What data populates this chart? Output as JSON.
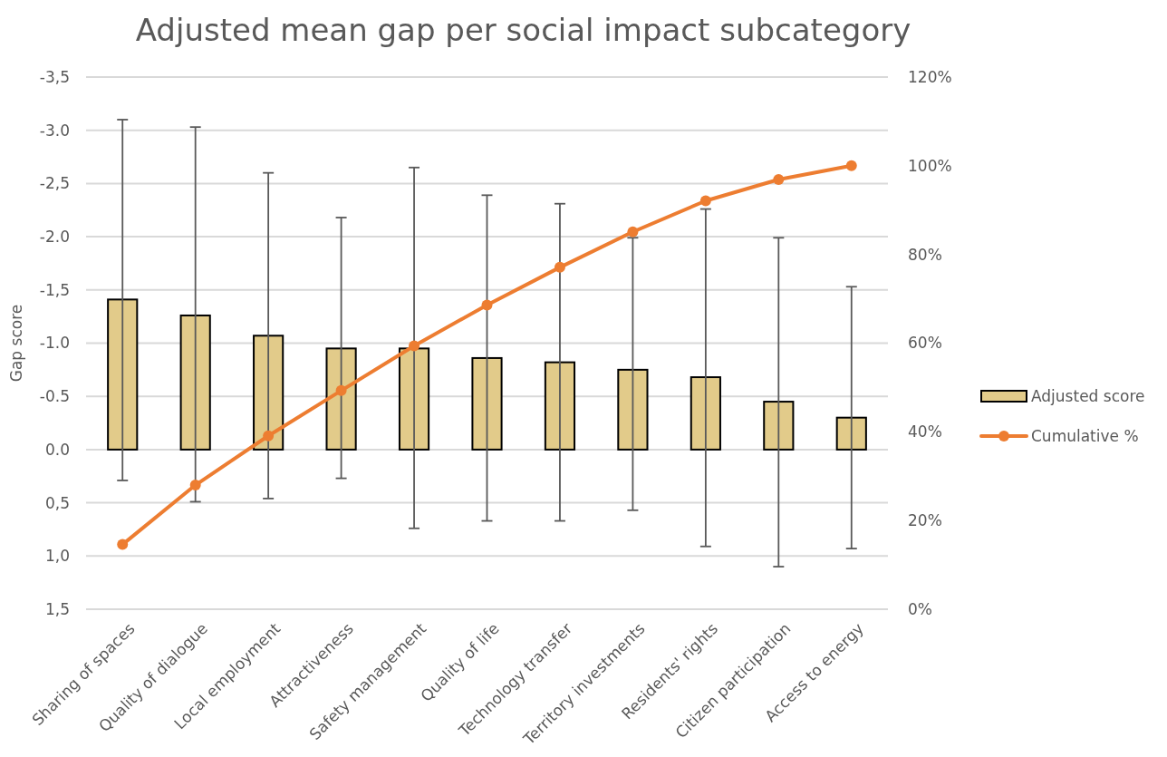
{
  "chart_data": {
    "type": "bar",
    "title": "Adjusted mean gap per social impact subcategory",
    "ylabel": "Gap score",
    "categories": [
      "Sharing of spaces",
      "Quality of dialogue",
      "Local employment",
      "Attractiveness",
      "Safety management",
      "Quality of life",
      "Technology transfer",
      "Territory investments",
      "Residents' rights",
      "Citizen participation",
      "Access to energy"
    ],
    "series": [
      {
        "name": "Adjusted score",
        "color": "#e2cb8a",
        "values": [
          -1.41,
          -1.26,
          -1.07,
          -0.95,
          -0.95,
          -0.86,
          -0.82,
          -0.75,
          -0.68,
          -0.45,
          -0.3
        ],
        "errors": [
          [
            -3.1,
            0.29
          ],
          [
            -3.03,
            0.49
          ],
          [
            -2.6,
            0.46
          ],
          [
            -2.18,
            0.27
          ],
          [
            -2.65,
            0.74
          ],
          [
            -2.39,
            0.67
          ],
          [
            -2.31,
            0.67
          ],
          [
            -1.99,
            0.57
          ],
          [
            -2.26,
            0.91
          ],
          [
            -1.99,
            1.1
          ],
          [
            -1.53,
            0.93
          ]
        ]
      },
      {
        "name": "Cumulative %",
        "type": "line",
        "axis": "y2",
        "color": "#ed7d31",
        "marker": "circle",
        "values": [
          14.6,
          28.0,
          39.1,
          49.3,
          59.4,
          68.6,
          77.1,
          85.1,
          92.1,
          96.9,
          100
        ]
      }
    ],
    "ylim": [
      1.5,
      -3.5
    ],
    "yticks": [
      {
        "value": -3.5,
        "label": "-3,5"
      },
      {
        "value": -3,
        "label": "-3.0"
      },
      {
        "value": -2.5,
        "label": "-2,5"
      },
      {
        "value": -2,
        "label": "-2.0"
      },
      {
        "value": -1.5,
        "label": "-1,5"
      },
      {
        "value": -1,
        "label": "-1.0"
      },
      {
        "value": -0.5,
        "label": "-0.5"
      },
      {
        "value": 0,
        "label": "0.0"
      },
      {
        "value": 0.5,
        "label": "0,5"
      },
      {
        "value": 1,
        "label": "1,0"
      },
      {
        "value": 1.5,
        "label": "1,5"
      }
    ],
    "y2lim": [
      0,
      120
    ],
    "y2ticks": [
      {
        "value": 0,
        "label": "0%"
      },
      {
        "value": 20,
        "label": "20%"
      },
      {
        "value": 40,
        "label": "40%"
      },
      {
        "value": 60,
        "label": "60%"
      },
      {
        "value": 80,
        "label": "80%"
      },
      {
        "value": 100,
        "label": "100%"
      },
      {
        "value": 120,
        "label": "120%"
      }
    ],
    "grid": "y",
    "legend": "right"
  }
}
